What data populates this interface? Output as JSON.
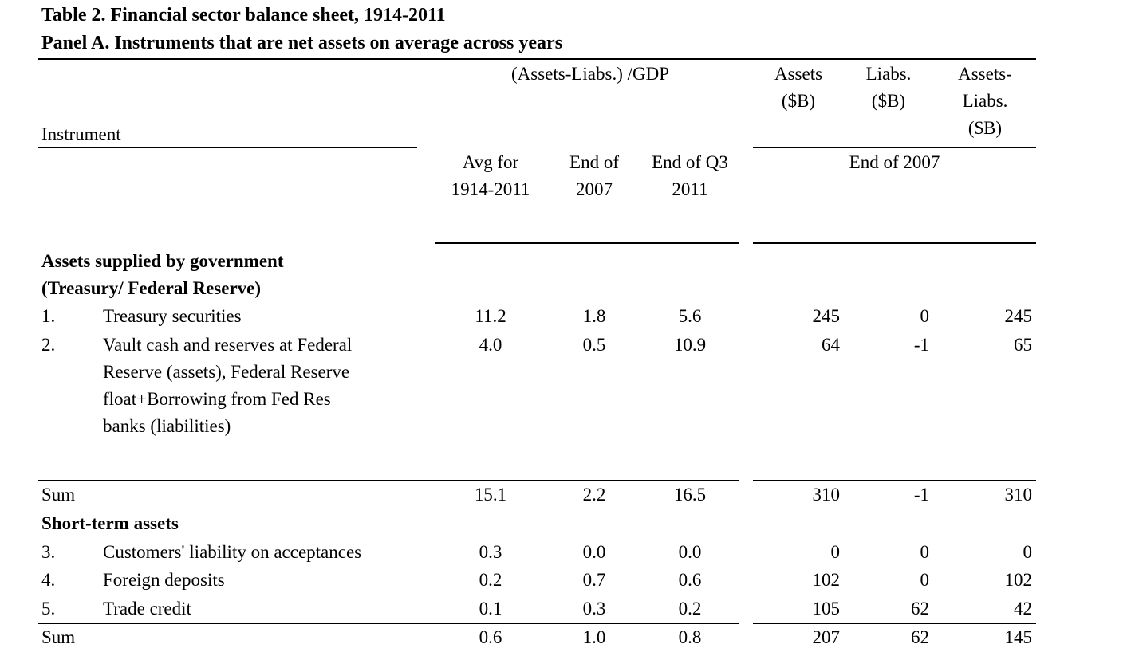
{
  "title": "Table 2. Financial sector balance sheet, 1914-2011",
  "panel": "Panel A. Instruments that are net assets on average across years",
  "headers": {
    "ratio_group": "(Assets-Liabs.) /GDP",
    "instrument": "Instrument",
    "assets": [
      "Assets",
      "($B)"
    ],
    "liabs": [
      "Liabs.",
      "($B)"
    ],
    "net": [
      "Assets-",
      "Liabs.",
      "($B)"
    ],
    "avg": [
      "Avg for",
      "1914-2011"
    ],
    "end2007": [
      "End of",
      "2007"
    ],
    "endq3": [
      "End of Q3",
      "2011"
    ],
    "level_period": "End of 2007"
  },
  "sections": [
    {
      "heading": [
        "Assets supplied by government",
        "(Treasury/ Federal Reserve)"
      ],
      "rows": [
        {
          "num": "1.",
          "label": [
            "Treasury securities"
          ],
          "avg": "11.2",
          "e2007": "1.8",
          "q3": "5.6",
          "assets": "245",
          "liabs": "0",
          "net": "245"
        },
        {
          "num": "2.",
          "label": [
            "Vault cash and reserves at Federal",
            "Reserve (assets), Federal Reserve",
            "float+Borrowing from Fed Res",
            "banks (liabilities)"
          ],
          "avg": "4.0",
          "e2007": "0.5",
          "q3": "10.9",
          "assets": "64",
          "liabs": "-1",
          "net": "65"
        }
      ],
      "sum": {
        "label": "Sum",
        "avg": "15.1",
        "e2007": "2.2",
        "q3": "16.5",
        "assets": "310",
        "liabs": "-1",
        "net": "310"
      }
    },
    {
      "heading": [
        "Short-term assets"
      ],
      "rows": [
        {
          "num": "3.",
          "label": [
            "Customers' liability on acceptances"
          ],
          "avg": "0.3",
          "e2007": "0.0",
          "q3": "0.0",
          "assets": "0",
          "liabs": "0",
          "net": "0"
        },
        {
          "num": "4.",
          "label": [
            "Foreign deposits"
          ],
          "avg": "0.2",
          "e2007": "0.7",
          "q3": "0.6",
          "assets": "102",
          "liabs": "0",
          "net": "102"
        },
        {
          "num": "5.",
          "label": [
            "Trade credit"
          ],
          "avg": "0.1",
          "e2007": "0.3",
          "q3": "0.2",
          "assets": "105",
          "liabs": "62",
          "net": "42"
        }
      ],
      "sum": {
        "label": "Sum",
        "avg": "0.6",
        "e2007": "1.0",
        "q3": "0.8",
        "assets": "207",
        "liabs": "62",
        "net": "145"
      }
    }
  ]
}
